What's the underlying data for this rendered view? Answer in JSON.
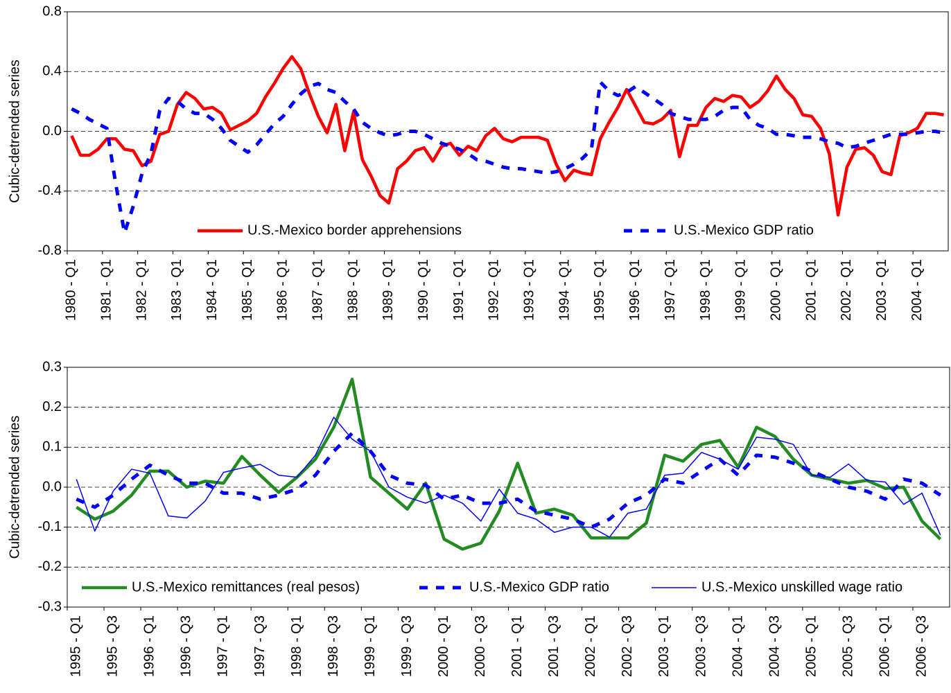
{
  "chart_data": [
    {
      "type": "line",
      "y_label": "Cubic-detrended series",
      "legend": "lower center",
      "grid": true,
      "categories": [
        "1980 - Q1",
        null,
        null,
        null,
        "1981 - Q1",
        null,
        null,
        null,
        "1982 - Q1",
        null,
        null,
        null,
        "1983 - Q1",
        null,
        null,
        null,
        "1984 - Q1",
        null,
        null,
        null,
        "1985 - Q1",
        null,
        null,
        null,
        "1986 - Q1",
        null,
        null,
        null,
        "1987 - Q1",
        null,
        null,
        null,
        "1988 - Q1",
        null,
        null,
        null,
        "1989 - Q1",
        null,
        null,
        null,
        "1990 - Q1",
        null,
        null,
        null,
        "1991 - Q1",
        null,
        null,
        null,
        "1992 - Q1",
        null,
        null,
        null,
        "1993 - Q1",
        null,
        null,
        null,
        "1994 - Q1",
        null,
        null,
        null,
        "1995 - Q1",
        null,
        null,
        null,
        "1996 - Q1",
        null,
        null,
        null,
        "1997 - Q1",
        null,
        null,
        null,
        "1998 - Q1",
        null,
        null,
        null,
        "1999 - Q1",
        null,
        null,
        null,
        "2000 - Q1",
        null,
        null,
        null,
        "2001 - Q1",
        null,
        null,
        null,
        "2002 - Q1",
        null,
        null,
        null,
        "2003 - Q1",
        null,
        null,
        null,
        "2004 - Q1",
        null,
        null,
        null
      ],
      "ylim": [
        -0.8,
        0.8
      ],
      "yticks": [
        -0.8,
        -0.4,
        {
          "value": 0,
          "label": "0.0"
        },
        0.4,
        0.8
      ],
      "series": [
        {
          "name": "U.S.-Mexico border apprehensions",
          "color": "#ff0000",
          "style": "thick",
          "values": [
            -0.03,
            -0.16,
            -0.16,
            -0.12,
            -0.05,
            -0.05,
            -0.12,
            -0.13,
            -0.23,
            -0.2,
            -0.02,
            0.0,
            0.18,
            0.26,
            0.22,
            0.15,
            0.16,
            0.12,
            0.01,
            0.04,
            0.07,
            0.12,
            0.23,
            0.32,
            0.42,
            0.5,
            0.42,
            0.25,
            0.1,
            -0.01,
            0.18,
            -0.13,
            0.13,
            -0.19,
            -0.3,
            -0.43,
            -0.48,
            -0.25,
            -0.2,
            -0.13,
            -0.11,
            -0.2,
            -0.1,
            -0.08,
            -0.16,
            -0.1,
            -0.13,
            -0.03,
            0.02,
            -0.05,
            -0.07,
            -0.04,
            -0.04,
            -0.04,
            -0.06,
            -0.22,
            -0.33,
            -0.26,
            -0.28,
            -0.29,
            -0.05,
            0.06,
            0.16,
            0.28,
            0.17,
            0.06,
            0.05,
            0.08,
            0.14,
            -0.17,
            0.04,
            0.04,
            0.16,
            0.22,
            0.2,
            0.24,
            0.23,
            0.16,
            0.2,
            0.27,
            0.37,
            0.28,
            0.22,
            0.11,
            0.1,
            0.02,
            -0.15,
            -0.56,
            -0.24,
            -0.12,
            -0.11,
            -0.16,
            -0.27,
            -0.29,
            -0.03,
            -0.01,
            0.02,
            0.12,
            0.12,
            0.11
          ]
        },
        {
          "name": "U.S.-Mexico GDP ratio",
          "color": "#0000ff",
          "style": "dashed",
          "values": [
            0.15,
            0.12,
            0.08,
            0.05,
            0.02,
            -0.35,
            -0.68,
            -0.5,
            -0.28,
            -0.15,
            0.14,
            0.22,
            0.2,
            0.15,
            0.12,
            0.12,
            0.08,
            0.02,
            -0.06,
            -0.1,
            -0.14,
            -0.09,
            -0.02,
            0.05,
            0.1,
            0.18,
            0.25,
            0.3,
            0.32,
            0.28,
            0.26,
            0.2,
            0.15,
            0.06,
            0.02,
            -0.01,
            -0.03,
            -0.02,
            0.0,
            0.0,
            -0.02,
            -0.05,
            -0.08,
            -0.1,
            -0.12,
            -0.15,
            -0.19,
            -0.2,
            -0.22,
            -0.24,
            -0.25,
            -0.25,
            -0.26,
            -0.27,
            -0.28,
            -0.27,
            -0.25,
            -0.22,
            -0.18,
            -0.12,
            0.33,
            0.27,
            0.24,
            0.26,
            0.3,
            0.26,
            0.22,
            0.18,
            0.12,
            0.1,
            0.08,
            0.08,
            0.08,
            0.1,
            0.14,
            0.16,
            0.16,
            0.08,
            0.04,
            0.02,
            -0.02,
            -0.02,
            -0.03,
            -0.04,
            -0.04,
            -0.05,
            -0.07,
            -0.08,
            -0.11,
            -0.1,
            -0.08,
            -0.06,
            -0.04,
            -0.02,
            -0.02,
            -0.02,
            -0.01,
            0.0,
            0.0,
            -0.01
          ]
        }
      ]
    },
    {
      "type": "line",
      "y_label": "Cubic-detrended series",
      "legend": "lower center",
      "grid": true,
      "categories": [
        "1995 - Q1",
        null,
        "1995 - Q3",
        null,
        "1996 - Q1",
        null,
        "1996 - Q3",
        null,
        "1997 - Q1",
        null,
        "1997 - Q3",
        null,
        "1998 - Q1",
        null,
        "1998 - Q3",
        null,
        "1999 - Q1",
        null,
        "1999 - Q3",
        null,
        "2000 - Q1",
        null,
        "2000 - Q3",
        null,
        "2001 - Q1",
        null,
        "2001 - Q3",
        null,
        "2002 - Q1",
        null,
        "2002 - Q3",
        null,
        "2003 - Q1",
        null,
        "2003 - Q3",
        null,
        "2004 - Q1",
        null,
        "2004 - Q3",
        null,
        "2005 - Q1",
        null,
        "2005 - Q3",
        null,
        "2006 - Q1",
        null,
        "2006 - Q3",
        null
      ],
      "ylim": [
        -0.3,
        0.3
      ],
      "yticks": [
        -0.3,
        -0.2,
        -0.1,
        {
          "value": 0,
          "label": "0.0"
        },
        0.1,
        0.2,
        0.3
      ],
      "series": [
        {
          "name": "U.S.-Mexico remittances (real pesos)",
          "color": "#228b22",
          "style": "thick",
          "values": [
            -0.05,
            -0.08,
            -0.06,
            -0.02,
            0.04,
            0.04,
            0.0,
            0.015,
            0.01,
            0.077,
            0.03,
            -0.013,
            0.025,
            0.07,
            0.15,
            0.27,
            0.025,
            -0.015,
            -0.055,
            0.01,
            -0.13,
            -0.155,
            -0.14,
            -0.06,
            0.06,
            -0.065,
            -0.055,
            -0.07,
            -0.127,
            -0.127,
            -0.127,
            -0.09,
            0.08,
            0.065,
            0.107,
            0.117,
            0.05,
            0.15,
            0.127,
            0.07,
            0.03,
            0.02,
            0.01,
            0.017,
            -0.003,
            0.0,
            -0.085,
            -0.13
          ]
        },
        {
          "name": "U.S.-Mexico GDP ratio",
          "color": "#0000ff",
          "style": "dashed",
          "values": [
            -0.03,
            -0.05,
            -0.02,
            0.02,
            0.055,
            0.03,
            0.01,
            0.01,
            -0.015,
            -0.015,
            -0.03,
            -0.02,
            -0.005,
            0.03,
            0.09,
            0.135,
            0.09,
            0.03,
            0.01,
            0.005,
            -0.03,
            -0.02,
            -0.04,
            -0.04,
            -0.03,
            -0.06,
            -0.07,
            -0.08,
            -0.1,
            -0.08,
            -0.04,
            -0.02,
            0.02,
            0.01,
            0.04,
            0.07,
            0.03,
            0.08,
            0.075,
            0.06,
            0.04,
            0.02,
            0.0,
            -0.01,
            -0.03,
            0.02,
            0.01,
            -0.02
          ]
        },
        {
          "name": "U.S.-Mexico unskilled wage ratio",
          "color": "#0000ff",
          "style": "thin",
          "values": [
            0.02,
            -0.11,
            -0.01,
            0.045,
            0.035,
            -0.072,
            -0.077,
            -0.035,
            0.037,
            0.048,
            0.057,
            0.03,
            0.025,
            0.08,
            0.175,
            0.12,
            0.09,
            0.0,
            -0.025,
            -0.04,
            -0.02,
            -0.04,
            -0.085,
            -0.005,
            -0.065,
            -0.08,
            -0.113,
            -0.1,
            -0.1,
            -0.125,
            -0.065,
            -0.055,
            0.03,
            0.035,
            0.087,
            0.07,
            0.045,
            0.125,
            0.12,
            0.107,
            0.03,
            0.025,
            0.058,
            0.017,
            0.013,
            -0.043,
            -0.015,
            -0.12
          ]
        }
      ]
    }
  ]
}
